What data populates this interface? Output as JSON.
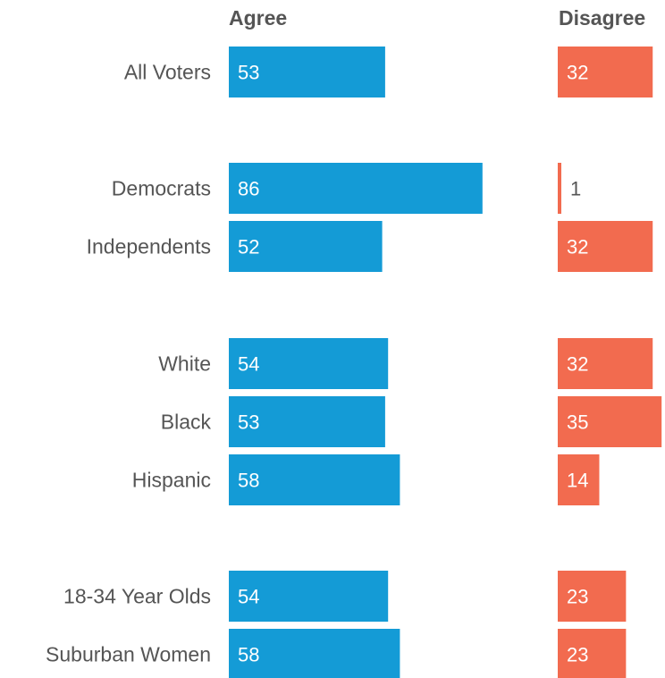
{
  "chart_data": {
    "type": "bar",
    "orientation": "horizontal",
    "series": [
      {
        "name": "Agree",
        "color": "#149bd6",
        "values": [
          53,
          86,
          52,
          54,
          53,
          58,
          54,
          58
        ]
      },
      {
        "name": "Disagree",
        "color": "#f26b4f",
        "values": [
          32,
          1,
          32,
          32,
          35,
          14,
          23,
          23
        ]
      }
    ],
    "categories": [
      "All Voters",
      "Democrats",
      "Independents",
      "White",
      "Black",
      "Hispanic",
      "18-34 Year Olds",
      "Suburban Women"
    ],
    "groups": [
      [
        "All Voters"
      ],
      [
        "Democrats",
        "Independents"
      ],
      [
        "White",
        "Black",
        "Hispanic"
      ],
      [
        "18-34 Year Olds",
        "Suburban Women"
      ]
    ],
    "title": "",
    "xlabel": "",
    "ylabel": "",
    "grid": false,
    "legend": "none"
  }
}
